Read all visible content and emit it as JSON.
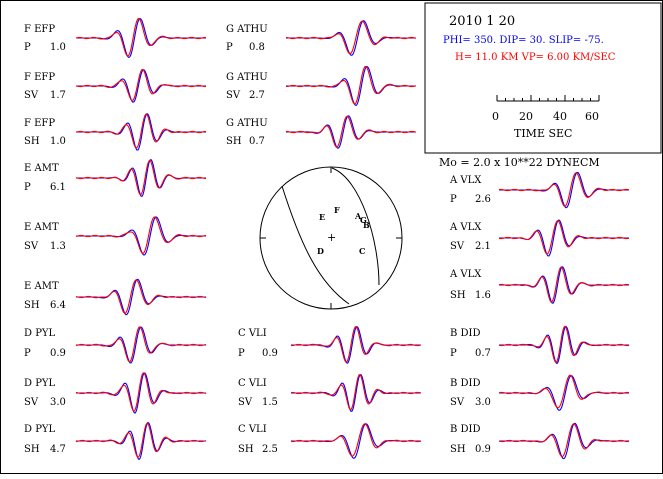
{
  "header": {
    "date": "2010  1 20",
    "mechanism": "PHI= 350. DIP= 30. SLIP= -75.",
    "depth_velocity": "H= 11.0 KM  VP= 6.00 KM/SEC",
    "scale_ticks": [
      "0",
      "20",
      "40",
      "60"
    ],
    "scale_label": "TIME  SEC",
    "moment": "Mo =  2.0 x 10**22 DYNECM"
  },
  "colors": {
    "observed": "#ff0000",
    "synthetic": "#0000ff",
    "ink": "#000000"
  },
  "traces": [
    {
      "station": "F EFP",
      "component": "P",
      "amplitude": "1.0"
    },
    {
      "station": "F EFP",
      "component": "SV",
      "amplitude": "1.7"
    },
    {
      "station": "F EFP",
      "component": "SH",
      "amplitude": "1.0"
    },
    {
      "station": "E AMT",
      "component": "P",
      "amplitude": "6.1"
    },
    {
      "station": "E AMT",
      "component": "SV",
      "amplitude": "1.3"
    },
    {
      "station": "E AMT",
      "component": "SH",
      "amplitude": "6.4"
    },
    {
      "station": "D PYL",
      "component": "P",
      "amplitude": "0.9"
    },
    {
      "station": "D PYL",
      "component": "SV",
      "amplitude": "3.0"
    },
    {
      "station": "D PYL",
      "component": "SH",
      "amplitude": "4.7"
    },
    {
      "station": "G ATHU",
      "component": "P",
      "amplitude": "0.8"
    },
    {
      "station": "G ATHU",
      "component": "SV",
      "amplitude": "2.7"
    },
    {
      "station": "G ATHU",
      "component": "SH",
      "amplitude": "0.7"
    },
    {
      "station": "C VLI",
      "component": "P",
      "amplitude": "0.9"
    },
    {
      "station": "C VLI",
      "component": "SV",
      "amplitude": "1.5"
    },
    {
      "station": "C VLI",
      "component": "SH",
      "amplitude": "2.5"
    },
    {
      "station": "A VLX",
      "component": "P",
      "amplitude": "2.6"
    },
    {
      "station": "A VLX",
      "component": "SV",
      "amplitude": "2.1"
    },
    {
      "station": "A VLX",
      "component": "SH",
      "amplitude": "1.6"
    },
    {
      "station": "B DID",
      "component": "P",
      "amplitude": "0.7"
    },
    {
      "station": "B DID",
      "component": "SV",
      "amplitude": "3.0"
    },
    {
      "station": "B DID",
      "component": "SH",
      "amplitude": "0.9"
    }
  ],
  "beachball": {
    "stations": [
      {
        "label": "E"
      },
      {
        "label": "F"
      },
      {
        "label": "A"
      },
      {
        "label": "G"
      },
      {
        "label": "B"
      },
      {
        "label": "D"
      },
      {
        "label": "C"
      }
    ]
  }
}
